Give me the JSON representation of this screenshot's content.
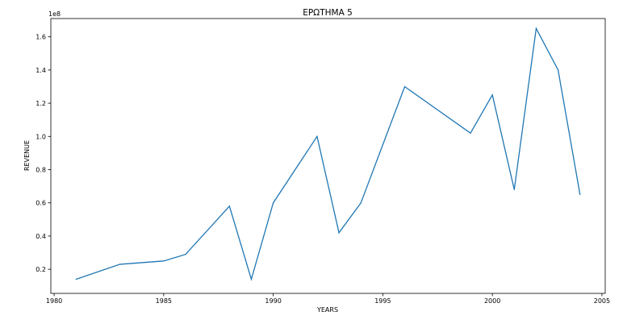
{
  "chart_data": {
    "type": "line",
    "title": "ΕΡΩΤΗΜΑ 5",
    "xlabel": "YEARS",
    "ylabel": "REVENUE",
    "y_offset_label": "1e8",
    "xlim": [
      1979.85,
      2005.15
    ],
    "ylim": [
      5500000,
      171000000
    ],
    "x_ticks": [
      1980,
      1985,
      1990,
      1995,
      2000,
      2005
    ],
    "x_tick_labels": [
      "1980",
      "1985",
      "1990",
      "1995",
      "2000",
      "2005"
    ],
    "y_ticks": [
      20000000,
      40000000,
      60000000,
      80000000,
      100000000,
      120000000,
      140000000,
      160000000
    ],
    "y_tick_labels": [
      "0.2",
      "0.4",
      "0.6",
      "0.8",
      "1.0",
      "1.2",
      "1.4",
      "1.6"
    ],
    "grid": false,
    "series": [
      {
        "color": "#1f77b4",
        "x": [
          1981,
          1983,
          1985,
          1986,
          1988,
          1989,
          1990,
          1992,
          1993,
          1994,
          1996,
          1999,
          2000,
          2001,
          2002,
          2003,
          2004
        ],
        "y": [
          14000000,
          23000000,
          25000000,
          29000000,
          58000000,
          14000000,
          60000000,
          100000000,
          42000000,
          60000000,
          130000000,
          102000000,
          125000000,
          68000000,
          165000000,
          140000000,
          65000000
        ]
      }
    ]
  }
}
